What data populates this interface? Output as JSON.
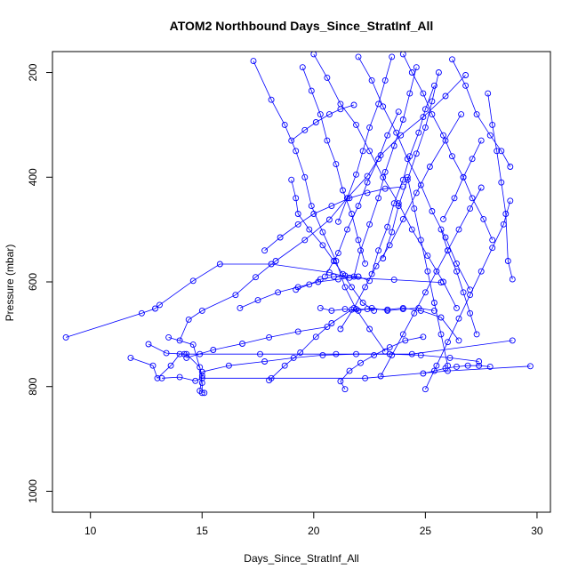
{
  "chart_data": {
    "type": "scatter",
    "title": "ATOM2 Northbound Days_Since_StratInf_All",
    "xlabel": "Days_Since_StratInf_All",
    "ylabel": "Pressure (mbar)",
    "xlim": [
      8.3,
      30.6
    ],
    "ylim": [
      1040,
      160
    ],
    "y_reversed": true,
    "xticks": [
      10,
      15,
      20,
      25,
      30
    ],
    "yticks": [
      200,
      400,
      600,
      800,
      1000
    ],
    "grid": false,
    "legend": "none",
    "series_color": "#0000ff",
    "marker": "open-circle",
    "connect_points": true,
    "series": [
      {
        "x": [
          8.9,
          12.3,
          12.9,
          13.1,
          14.6,
          15.8,
          18.1,
          20.7,
          21.6,
          23.6,
          25.7
        ],
        "y": [
          706,
          660,
          651,
          644,
          598,
          566,
          566,
          582,
          592,
          596,
          601
        ]
      },
      {
        "x": [
          11.8,
          12.8,
          13.0,
          13.6,
          14.0,
          14.3,
          14.9,
          15.0,
          15.0
        ],
        "y": [
          745,
          760,
          784,
          760,
          738,
          738,
          763,
          793,
          812
        ]
      },
      {
        "x": [
          12.6,
          13.4,
          14.2,
          14.9,
          17.6,
          21.0,
          24.4,
          28.9
        ],
        "y": [
          719,
          736,
          738,
          738,
          738,
          738,
          738,
          712
        ]
      },
      {
        "x": [
          13.2,
          14.0,
          14.7,
          15.0,
          18.1,
          22.3,
          26.0,
          29.7
        ],
        "y": [
          784,
          782,
          789,
          784,
          784,
          784,
          770,
          761
        ]
      },
      {
        "x": [
          13.5,
          14.6,
          15.0,
          14.9,
          15.1
        ],
        "y": [
          706,
          720,
          779,
          808,
          812
        ]
      },
      {
        "x": [
          14.0,
          14.4,
          15.0,
          16.5,
          17.4,
          18.3,
          19.6,
          20.7,
          21.5,
          22.4,
          23.0,
          23.9,
          24.9,
          25.9,
          26.8
        ],
        "y": [
          712,
          672,
          655,
          625,
          591,
          560,
          520,
          481,
          440,
          398,
          358,
          320,
          285,
          245,
          205
        ]
      },
      {
        "x": [
          17.3,
          18.1,
          18.7,
          19.2,
          19.6,
          19.9,
          20.4,
          21.0,
          21.4,
          21.9,
          22.5,
          23.2
        ],
        "y": [
          178,
          252,
          300,
          350,
          400,
          455,
          505,
          560,
          610,
          652,
          690,
          733
        ]
      },
      {
        "x": [
          18.0,
          18.7,
          19.4,
          20.1,
          20.8,
          21.7,
          22.4,
          23.3,
          24.0,
          24.8,
          25.7,
          26.5
        ],
        "y": [
          788,
          760,
          735,
          705,
          679,
          653,
          652,
          653,
          650,
          655,
          668,
          712
        ]
      },
      {
        "x": [
          19.0,
          19.2,
          19.3,
          19.8,
          20.4,
          20.9,
          21.3,
          21.7,
          22.2,
          22.7
        ],
        "y": [
          405,
          440,
          470,
          500,
          530,
          560,
          585,
          610,
          640,
          655
        ]
      },
      {
        "x": [
          20.0,
          20.6,
          21.2,
          21.9,
          22.5,
          23.1,
          23.8,
          24.4,
          25.1,
          25.8,
          26.4
        ],
        "y": [
          165,
          210,
          260,
          300,
          350,
          400,
          450,
          500,
          550,
          600,
          650
        ]
      },
      {
        "x": [
          21.2,
          21.8,
          22.3,
          22.8,
          23.4,
          24.0,
          24.6,
          25.2,
          25.9,
          26.6
        ],
        "y": [
          690,
          650,
          610,
          570,
          530,
          480,
          430,
          380,
          330,
          280
        ]
      },
      {
        "x": [
          22.0,
          22.6,
          23.1,
          23.7,
          24.2,
          24.8,
          25.3,
          25.9,
          26.4,
          27.0
        ],
        "y": [
          170,
          215,
          265,
          315,
          365,
          415,
          465,
          515,
          565,
          615
        ]
      },
      {
        "x": [
          23.0,
          23.5,
          24.0,
          24.5,
          25.0,
          25.5,
          26.0,
          26.5,
          27.0,
          27.5
        ],
        "y": [
          780,
          740,
          700,
          660,
          620,
          580,
          540,
          500,
          460,
          420
        ]
      },
      {
        "x": [
          24.0,
          24.4,
          24.9,
          25.3,
          25.8,
          26.2,
          26.7,
          27.1,
          27.6,
          28.0
        ],
        "y": [
          165,
          200,
          240,
          280,
          320,
          360,
          400,
          440,
          480,
          520
        ]
      },
      {
        "x": [
          25.0,
          25.5,
          26.0,
          26.5,
          27.0,
          27.5,
          28.0,
          28.5,
          28.8
        ],
        "y": [
          805,
          760,
          715,
          670,
          625,
          580,
          535,
          490,
          445
        ]
      },
      {
        "x": [
          26.2,
          26.8,
          27.3,
          27.9,
          28.4,
          28.8
        ],
        "y": [
          175,
          225,
          280,
          320,
          350,
          380
        ]
      },
      {
        "x": [
          27.8,
          28.0,
          28.2,
          28.4,
          28.6,
          28.7,
          28.9
        ],
        "y": [
          240,
          300,
          350,
          410,
          470,
          560,
          595
        ]
      },
      {
        "x": [
          15.0,
          16.2,
          17.8,
          19.1,
          20.4,
          21.9,
          23.4,
          24.8,
          26.1,
          27.4
        ],
        "y": [
          772,
          760,
          752,
          745,
          740,
          738,
          738,
          740,
          745,
          752
        ]
      },
      {
        "x": [
          19.5,
          19.9,
          20.3,
          20.6,
          21.0,
          21.3,
          21.7,
          22.0,
          22.3
        ],
        "y": [
          190,
          235,
          280,
          330,
          375,
          425,
          470,
          520,
          565
        ]
      },
      {
        "x": [
          20.5,
          21.1,
          21.5,
          22.0,
          22.4,
          22.9,
          23.3,
          23.8
        ],
        "y": [
          590,
          545,
          500,
          455,
          410,
          365,
          320,
          275
        ]
      },
      {
        "x": [
          22.6,
          22.9,
          23.3,
          23.6,
          24.0,
          24.3,
          24.7,
          25.0,
          25.4
        ],
        "y": [
          585,
          540,
          495,
          450,
          405,
          360,
          315,
          270,
          225
        ]
      },
      {
        "x": [
          23.5,
          23.2,
          22.9,
          22.5,
          22.2,
          21.9,
          21.5,
          21.1
        ],
        "y": [
          170,
          215,
          260,
          305,
          350,
          395,
          440,
          485
        ]
      },
      {
        "x": [
          24.6,
          24.3,
          24.0,
          23.6,
          23.2,
          22.9,
          22.5,
          22.1,
          21.8
        ],
        "y": [
          190,
          240,
          290,
          340,
          390,
          440,
          490,
          540,
          590
        ]
      },
      {
        "x": [
          25.6,
          25.3,
          25.0,
          24.6,
          24.2,
          23.8,
          23.5,
          23.1
        ],
        "y": [
          200,
          255,
          305,
          355,
          405,
          455,
          505,
          555
        ]
      },
      {
        "x": [
          20.3,
          20.8,
          21.4,
          22.0,
          22.6,
          23.3,
          24.0,
          24.7,
          25.4
        ],
        "y": [
          650,
          655,
          652,
          655,
          650,
          655,
          652,
          650,
          655
        ]
      },
      {
        "x": [
          19.2,
          19.8,
          20.3,
          20.9,
          21.4,
          22.0,
          22.5
        ],
        "y": [
          615,
          605,
          595,
          590,
          588,
          590,
          598
        ]
      },
      {
        "x": [
          21.4,
          21.2,
          21.6,
          22.1,
          22.7,
          23.4,
          24.1,
          24.9
        ],
        "y": [
          805,
          790,
          770,
          755,
          740,
          725,
          712,
          705
        ]
      },
      {
        "x": [
          17.8,
          18.5,
          19.3,
          20.0,
          20.8,
          21.6,
          22.4,
          23.2,
          24.0
        ],
        "y": [
          540,
          515,
          490,
          470,
          455,
          440,
          430,
          422,
          418
        ]
      },
      {
        "x": [
          26.0,
          25.7,
          25.4,
          25.1,
          24.8,
          24.5,
          24.2
        ],
        "y": [
          760,
          700,
          640,
          580,
          520,
          460,
          400
        ]
      },
      {
        "x": [
          16.7,
          17.5,
          18.4,
          19.3,
          20.2,
          21.1,
          22.0
        ],
        "y": [
          650,
          635,
          620,
          610,
          600,
          595,
          590
        ]
      },
      {
        "x": [
          27.3,
          27.0,
          26.7,
          26.4,
          26.0,
          25.7
        ],
        "y": [
          700,
          660,
          620,
          580,
          540,
          500
        ]
      },
      {
        "x": [
          14.3,
          15.5,
          16.8,
          18.0,
          19.3,
          20.6
        ],
        "y": [
          745,
          730,
          718,
          706,
          695,
          686
        ]
      },
      {
        "x": [
          24.9,
          25.4,
          25.9,
          26.4,
          26.9,
          27.4,
          27.9
        ],
        "y": [
          775,
          770,
          765,
          762,
          760,
          760,
          762
        ]
      },
      {
        "x": [
          19.0,
          19.6,
          20.1,
          20.7,
          21.2,
          21.8
        ],
        "y": [
          330,
          310,
          295,
          280,
          270,
          262
        ]
      },
      {
        "x": [
          25.8,
          26.3,
          26.7,
          27.1,
          27.5
        ],
        "y": [
          480,
          440,
          400,
          365,
          330
        ]
      }
    ]
  }
}
